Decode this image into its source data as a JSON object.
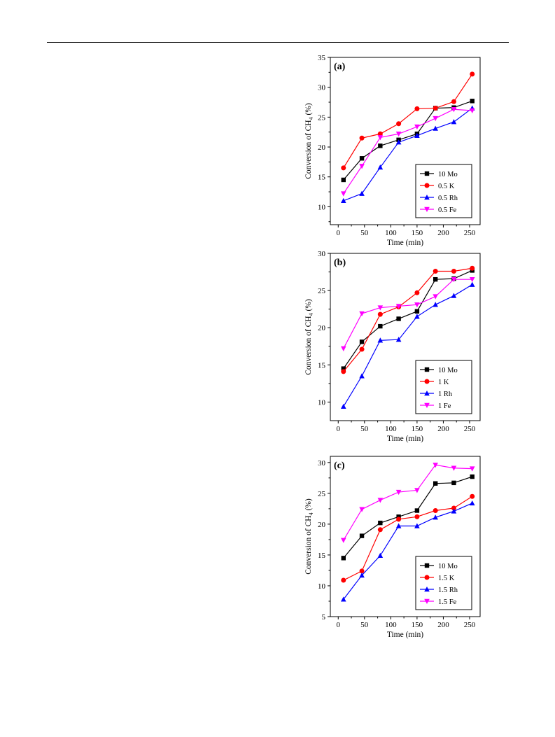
{
  "chart_data": [
    {
      "type": "line",
      "panel_label": "(a)",
      "xlabel": "Time (min)",
      "ylabel_main": "Conversion of CH",
      "ylabel_sub": "4",
      "ylabel_tail": " (%)",
      "xlim": [
        -15,
        270
      ],
      "ylim": [
        7,
        35
      ],
      "xticks": [
        0,
        50,
        100,
        150,
        200,
        250
      ],
      "yticks": [
        10,
        15,
        20,
        25,
        30,
        35
      ],
      "legend_position": "lower-right",
      "x": [
        10,
        45,
        80,
        115,
        150,
        185,
        220,
        255
      ],
      "series": [
        {
          "name": "10 Mo",
          "color": "#000000",
          "marker": "square",
          "values": [
            14.5,
            18.1,
            20.2,
            21.2,
            22.2,
            26.5,
            26.6,
            27.7
          ]
        },
        {
          "name": "0.5 K",
          "color": "#ff0000",
          "marker": "circle",
          "values": [
            16.5,
            21.5,
            22.2,
            23.9,
            26.4,
            26.5,
            27.6,
            32.2
          ]
        },
        {
          "name": "0.5 Rh",
          "color": "#0000ff",
          "marker": "triangle-up",
          "values": [
            11.0,
            12.2,
            16.6,
            20.8,
            21.9,
            23.1,
            24.2,
            26.5
          ]
        },
        {
          "name": "0.5 Fe",
          "color": "#ff00ff",
          "marker": "triangle-down",
          "values": [
            12.2,
            16.8,
            21.6,
            22.2,
            23.4,
            24.8,
            26.3,
            26.1
          ]
        }
      ]
    },
    {
      "type": "line",
      "panel_label": "(b)",
      "xlabel": "Time (min)",
      "ylabel_main": "Conversion of CH",
      "ylabel_sub": "4",
      "ylabel_tail": " (%)",
      "xlim": [
        -15,
        270
      ],
      "ylim": [
        7.5,
        30
      ],
      "xticks": [
        0,
        50,
        100,
        150,
        200,
        250
      ],
      "yticks": [
        10,
        15,
        20,
        25,
        30
      ],
      "legend_position": "lower-right",
      "x": [
        10,
        45,
        80,
        115,
        150,
        185,
        220,
        255
      ],
      "series": [
        {
          "name": "10 Mo",
          "color": "#000000",
          "marker": "square",
          "values": [
            14.5,
            18.1,
            20.2,
            21.2,
            22.2,
            26.5,
            26.6,
            27.7
          ]
        },
        {
          "name": "1 K",
          "color": "#ff0000",
          "marker": "circle",
          "values": [
            14.1,
            17.1,
            21.8,
            22.8,
            24.7,
            27.6,
            27.6,
            28.0
          ]
        },
        {
          "name": "1 Rh",
          "color": "#0000ff",
          "marker": "triangle-up",
          "values": [
            9.4,
            13.5,
            18.3,
            18.4,
            21.5,
            23.1,
            24.3,
            25.8
          ]
        },
        {
          "name": "1 Fe",
          "color": "#ff00ff",
          "marker": "triangle-down",
          "values": [
            17.2,
            21.9,
            22.7,
            22.9,
            23.1,
            24.2,
            26.5,
            26.5
          ]
        }
      ]
    },
    {
      "type": "line",
      "panel_label": "(c)",
      "xlabel": "Time (min)",
      "ylabel_main": "Conversion of CH",
      "ylabel_sub": "4",
      "ylabel_tail": " (%)",
      "xlim": [
        -15,
        270
      ],
      "ylim": [
        5,
        31
      ],
      "xticks": [
        0,
        50,
        100,
        150,
        200,
        250
      ],
      "yticks": [
        5,
        10,
        15,
        20,
        25,
        30
      ],
      "legend_position": "lower-right",
      "x": [
        10,
        45,
        80,
        115,
        150,
        185,
        220,
        255
      ],
      "series": [
        {
          "name": "10 Mo",
          "color": "#000000",
          "marker": "square",
          "values": [
            14.5,
            18.1,
            20.2,
            21.2,
            22.2,
            26.6,
            26.7,
            27.7
          ]
        },
        {
          "name": "1.5 K",
          "color": "#ff0000",
          "marker": "circle",
          "values": [
            10.9,
            12.4,
            19.1,
            20.8,
            21.2,
            22.2,
            22.6,
            24.5
          ]
        },
        {
          "name": "1.5 Rh",
          "color": "#0000ff",
          "marker": "triangle-up",
          "values": [
            7.8,
            11.7,
            14.9,
            19.7,
            19.7,
            21.1,
            22.1,
            23.4
          ]
        },
        {
          "name": "1.5 Fe",
          "color": "#ff00ff",
          "marker": "triangle-down",
          "values": [
            17.4,
            22.4,
            23.9,
            25.2,
            25.5,
            29.6,
            29.1,
            29.0
          ]
        }
      ]
    }
  ]
}
